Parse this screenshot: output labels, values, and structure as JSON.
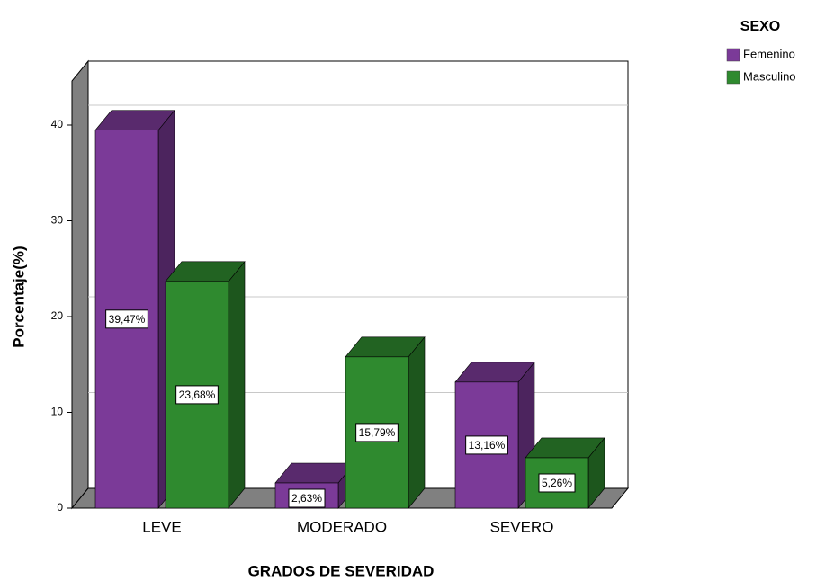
{
  "chart_data": {
    "type": "bar3d",
    "x_label": "GRADOS DE SEVERIDAD",
    "y_label": "Porcentaje(%)",
    "legend_title": "SEXO",
    "legend": "right",
    "categories": [
      "LEVE",
      "MODERADO",
      "SEVERO"
    ],
    "series": [
      {
        "name": "Femenino",
        "color": "#7b3a98",
        "values": [
          39.47,
          2.63,
          13.16
        ],
        "value_labels": [
          "39,47%",
          "2,63%",
          "13,16%"
        ]
      },
      {
        "name": "Masculino",
        "color": "#2f8a2f",
        "values": [
          23.68,
          15.79,
          5.26
        ],
        "value_labels": [
          "23,68%",
          "15,79%",
          "5,26%"
        ]
      }
    ],
    "ylim": [
      0,
      44.6
    ],
    "yticks": [
      0,
      10,
      20,
      30,
      40
    ],
    "grid": true
  }
}
